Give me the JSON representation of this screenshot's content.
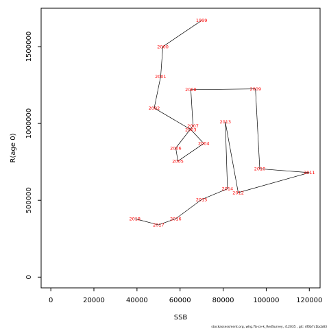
{
  "chart_data": {
    "type": "line",
    "xlabel": "SSB",
    "ylabel": "R(age 0)",
    "xlim": [
      -4500,
      125000
    ],
    "ylim": [
      -70000,
      1750000
    ],
    "x_ticks": [
      0,
      20000,
      40000,
      60000,
      80000,
      100000,
      120000
    ],
    "y_ticks": [
      0,
      500000,
      1000000,
      1500000
    ],
    "grid": false,
    "series": [
      {
        "line_color": "#000000",
        "label_color": "#ff0000",
        "points": [
          {
            "label": "1999",
            "x": 70000,
            "y": 1670000
          },
          {
            "label": "2000",
            "x": 52000,
            "y": 1500000
          },
          {
            "label": "2001",
            "x": 51000,
            "y": 1305000
          },
          {
            "label": "2002",
            "x": 48000,
            "y": 1100000
          },
          {
            "label": "2003",
            "x": 65000,
            "y": 960000
          },
          {
            "label": "2004",
            "x": 71000,
            "y": 870000
          },
          {
            "label": "2005",
            "x": 59000,
            "y": 755000
          },
          {
            "label": "2006",
            "x": 58000,
            "y": 840000
          },
          {
            "label": "2007",
            "x": 66000,
            "y": 985000
          },
          {
            "label": "2008",
            "x": 65000,
            "y": 1220000
          },
          {
            "label": "2009",
            "x": 95000,
            "y": 1225000
          },
          {
            "label": "2010",
            "x": 97000,
            "y": 705000
          },
          {
            "label": "2011",
            "x": 120000,
            "y": 680000
          },
          {
            "label": "2012",
            "x": 87000,
            "y": 550000
          },
          {
            "label": "2013",
            "x": 81000,
            "y": 1010000
          },
          {
            "label": "2014",
            "x": 82000,
            "y": 575000
          },
          {
            "label": "2015",
            "x": 70000,
            "y": 505000
          },
          {
            "label": "2016",
            "x": 58000,
            "y": 380000
          },
          {
            "label": "2017",
            "x": 50000,
            "y": 340000
          },
          {
            "label": "2018",
            "x": 39000,
            "y": 380000
          }
        ]
      }
    ]
  },
  "footnote": "stockassessment.org, whg.7b-ce-k_RedSurvey, r12035 , git: df0b7c1bcb83"
}
